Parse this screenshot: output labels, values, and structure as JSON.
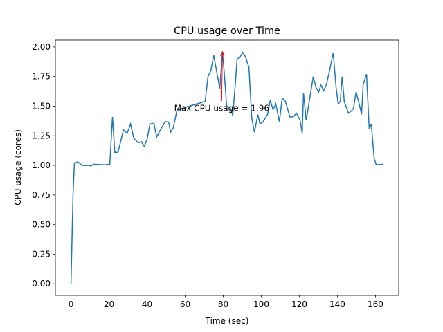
{
  "chart_data": {
    "type": "line",
    "title": "CPU usage over Time",
    "xlabel": "Time (sec)",
    "ylabel": "CPU usage (cores)",
    "x": [
      0,
      1.1,
      1.8,
      3.6,
      5.8,
      9.5,
      10.5,
      12,
      17.5,
      20.4,
      21.8,
      23,
      24.7,
      27.6,
      29.5,
      31.3,
      33,
      35.3,
      37,
      38.5,
      40,
      41.5,
      43.6,
      45,
      47,
      49.5,
      51.3,
      52.4,
      53.8,
      55.6,
      58,
      70.5,
      72,
      73.5,
      75,
      76.7,
      78.2,
      79.6,
      80.7,
      81.8,
      83.6,
      85,
      86.2,
      87.3,
      88.7,
      90.2,
      91.6,
      93.5,
      95,
      96.4,
      98.2,
      99.3,
      101,
      103.3,
      104.7,
      106.2,
      107.6,
      109.5,
      111,
      112.7,
      115,
      116.7,
      118.5,
      120.4,
      121.5,
      122.2,
      123.6,
      125.5,
      127.3,
      128.7,
      130.2,
      131.3,
      132.7,
      134.2,
      136,
      137.8,
      139.3,
      140.4,
      141.5,
      142.5,
      143.6,
      145.8,
      147.3,
      148.4,
      149.8,
      151.3,
      152.7,
      153.5,
      155.3,
      156.7,
      157.8,
      159.3,
      160.4,
      164
    ],
    "series": [
      {
        "name": "CPU usage",
        "color": "#1f77b4",
        "values": [
          0,
          0.77,
          1.02,
          1.03,
          1.0,
          1.0,
          0.995,
          1.01,
          1.005,
          1.01,
          1.41,
          1.11,
          1.11,
          1.3,
          1.27,
          1.35,
          1.23,
          1.19,
          1.2,
          1.16,
          1.22,
          1.35,
          1.355,
          1.24,
          1.3,
          1.37,
          1.365,
          1.28,
          1.32,
          1.46,
          1.48,
          1.54,
          1.75,
          1.8,
          1.93,
          1.78,
          1.65,
          1.96,
          1.75,
          1.5,
          1.49,
          1.42,
          1.66,
          1.9,
          1.91,
          1.955,
          1.92,
          1.83,
          1.4,
          1.28,
          1.43,
          1.35,
          1.37,
          1.43,
          1.55,
          1.47,
          1.52,
          1.37,
          1.57,
          1.54,
          1.41,
          1.41,
          1.44,
          1.38,
          1.27,
          1.61,
          1.38,
          1.57,
          1.75,
          1.66,
          1.62,
          1.68,
          1.63,
          1.68,
          1.81,
          1.95,
          1.66,
          1.52,
          1.54,
          1.75,
          1.54,
          1.44,
          1.46,
          1.48,
          1.62,
          1.53,
          1.43,
          1.68,
          1.77,
          1.31,
          1.35,
          1.06,
          1.005,
          1.01
        ]
      }
    ],
    "annotation": {
      "text": "Max CPU usage = 1.96",
      "xy": [
        79.6,
        1.96
      ],
      "xytext": [
        54.2,
        1.46
      ],
      "color": "#ff0000"
    },
    "xlim": [
      -8.2,
      172.2
    ],
    "ylim": [
      -0.098,
      2.058
    ],
    "xticks": [
      0,
      20,
      40,
      60,
      80,
      100,
      120,
      140,
      160
    ],
    "yticks": [
      {
        "value": 0,
        "label": "0.00"
      },
      {
        "value": 0.25,
        "label": "0.25"
      },
      {
        "value": 0.5,
        "label": "0.50"
      },
      {
        "value": 0.75,
        "label": "0.75"
      },
      {
        "value": 1,
        "label": "1.00"
      },
      {
        "value": 1.25,
        "label": "1.25"
      },
      {
        "value": 1.5,
        "label": "1.50"
      },
      {
        "value": 1.75,
        "label": "1.75"
      },
      {
        "value": 2,
        "label": "2.00"
      }
    ],
    "grid": false
  }
}
